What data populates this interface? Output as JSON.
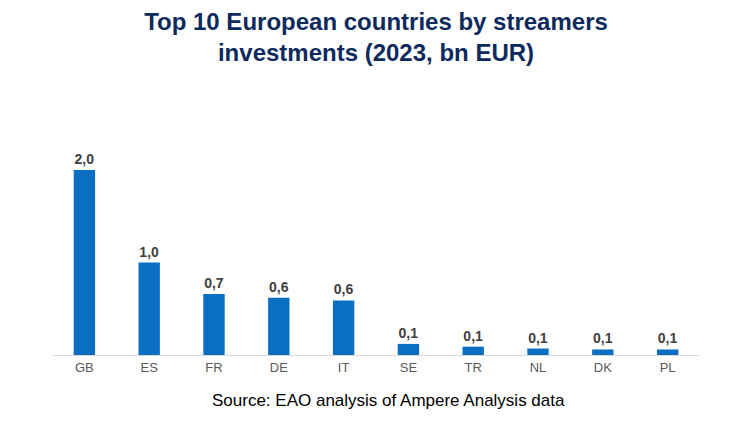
{
  "chart_data": {
    "type": "bar",
    "title": "Top 10 European countries by streamers investments (2023, bn EUR)",
    "source": "Source: EAO analysis of Ampere Analysis data",
    "categories": [
      "GB",
      "ES",
      "FR",
      "DE",
      "IT",
      "SE",
      "TR",
      "NL",
      "DK",
      "PL"
    ],
    "values": [
      2.0,
      1.0,
      0.66,
      0.62,
      0.59,
      0.12,
      0.09,
      0.07,
      0.06,
      0.06
    ],
    "value_labels": [
      "2,0",
      "1,0",
      "0,7",
      "0,6",
      "0,6",
      "0,1",
      "0,1",
      "0,1",
      "0,1",
      "0,1"
    ],
    "color": "#0b6fc1",
    "ylim": [
      0,
      2.0
    ],
    "grid": false,
    "data_labels": true,
    "tick_labels": "x"
  }
}
